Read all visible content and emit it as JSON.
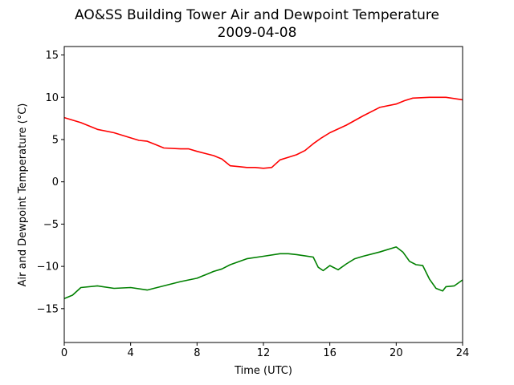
{
  "chart_data": {
    "type": "line",
    "title": "AO&SS Building Tower Air and Dewpoint Temperature",
    "subtitle": "2009-04-08",
    "xlabel": "Time (UTC)",
    "ylabel": "Air and Dewpoint Temperature (°C)",
    "xlim": [
      0,
      24
    ],
    "ylim": [
      -19,
      16
    ],
    "xticks": [
      0,
      4,
      8,
      12,
      16,
      20,
      24
    ],
    "yticks": [
      -15,
      -10,
      -5,
      0,
      5,
      10,
      15
    ],
    "ytick_labels": [
      "−15",
      "−10",
      "−5",
      "0",
      "5",
      "10",
      "15"
    ],
    "grid": false,
    "series": [
      {
        "color": "#ff0000",
        "x": [
          0,
          1,
          2,
          3,
          4,
          4.5,
          5,
          5.5,
          6,
          7,
          7.5,
          8,
          9,
          9.5,
          10,
          10.5,
          11,
          11.5,
          12,
          12.5,
          13,
          13.5,
          14,
          14.5,
          15,
          15.5,
          16,
          17,
          18,
          19,
          20,
          20.5,
          21,
          22,
          23,
          24
        ],
        "y": [
          7.6,
          7.0,
          6.2,
          5.8,
          5.2,
          4.9,
          4.8,
          4.4,
          4.0,
          3.9,
          3.9,
          3.6,
          3.1,
          2.7,
          1.9,
          1.8,
          1.7,
          1.7,
          1.6,
          1.7,
          2.6,
          2.9,
          3.2,
          3.7,
          4.5,
          5.2,
          5.8,
          6.7,
          7.8,
          8.8,
          9.2,
          9.6,
          9.9,
          10.0,
          10.0,
          9.7
        ]
      },
      {
        "color": "#008000",
        "x": [
          0,
          0.5,
          1,
          2,
          3,
          4,
          5,
          6,
          7,
          8,
          9,
          9.5,
          10,
          11,
          12,
          13,
          13.5,
          14,
          15,
          15.3,
          15.6,
          16,
          16.5,
          17,
          17.5,
          18,
          19,
          20,
          20.4,
          20.8,
          21.2,
          21.6,
          22,
          22.4,
          22.8,
          23,
          23.5,
          24
        ],
        "y": [
          -13.8,
          -13.4,
          -12.5,
          -12.3,
          -12.6,
          -12.5,
          -12.8,
          -12.3,
          -11.8,
          -11.4,
          -10.6,
          -10.3,
          -9.8,
          -9.1,
          -8.8,
          -8.5,
          -8.5,
          -8.6,
          -8.9,
          -10.1,
          -10.5,
          -9.9,
          -10.4,
          -9.7,
          -9.1,
          -8.8,
          -8.3,
          -7.7,
          -8.3,
          -9.4,
          -9.8,
          -9.9,
          -11.5,
          -12.6,
          -12.9,
          -12.4,
          -12.3,
          -11.6
        ]
      }
    ]
  }
}
